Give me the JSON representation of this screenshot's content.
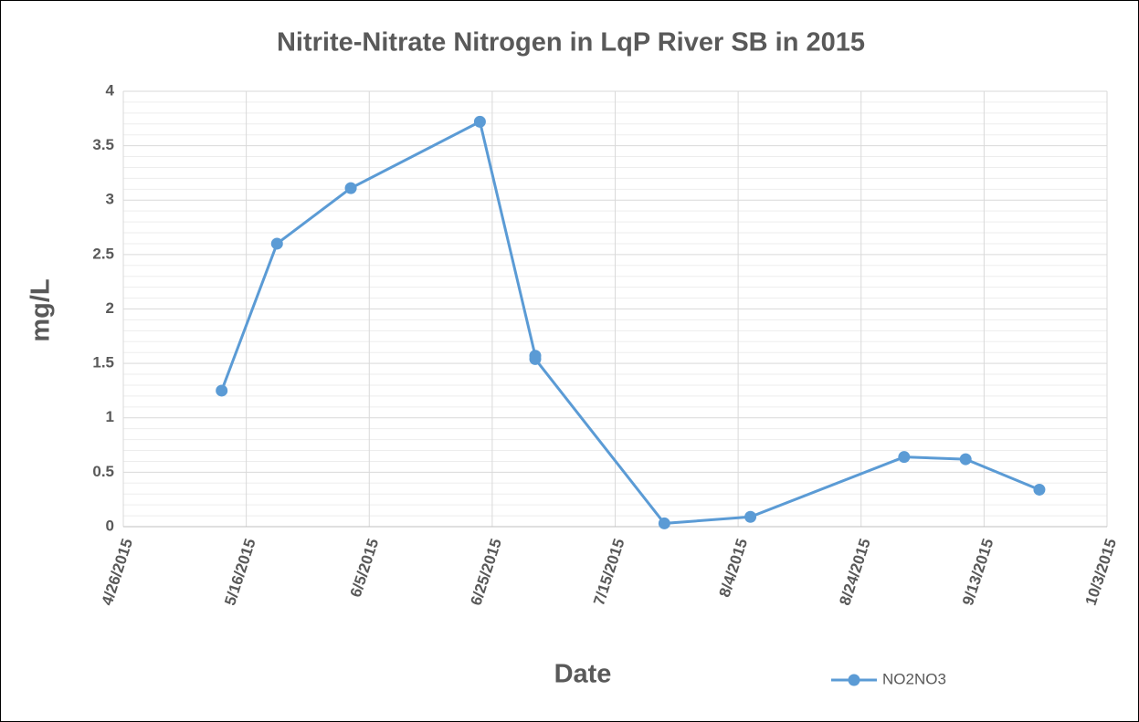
{
  "chart_data": {
    "type": "line",
    "title": "Nitrite-Nitrate Nitrogen in LqP River SB in 2015",
    "x_label": "Date",
    "y_label": "mg/L",
    "x": [
      "5/12/2015",
      "5/21/2015",
      "6/2/2015",
      "6/23/2015",
      "7/2/2015",
      "7/2/2015",
      "7/23/2015",
      "8/6/2015",
      "8/31/2015",
      "9/10/2015",
      "9/22/2015"
    ],
    "series": [
      {
        "name": "NO2NO3",
        "color": "#5b9bd5",
        "values": [
          1.25,
          2.6,
          3.11,
          3.72,
          1.57,
          1.54,
          0.03,
          0.09,
          0.64,
          0.62,
          0.34
        ]
      }
    ],
    "xlim": [
      "4/26/2015",
      "10/3/2015"
    ],
    "xticks": [
      "4/26/2015",
      "5/16/2015",
      "6/5/2015",
      "6/25/2015",
      "7/15/2015",
      "8/4/2015",
      "8/24/2015",
      "9/13/2015",
      "10/3/2015"
    ],
    "ylim": [
      0,
      4
    ],
    "yticks": [
      0,
      0.5,
      1,
      1.5,
      2,
      2.5,
      3,
      3.5,
      4
    ],
    "grid": true,
    "minor_grid": true,
    "legend": "bottom"
  }
}
